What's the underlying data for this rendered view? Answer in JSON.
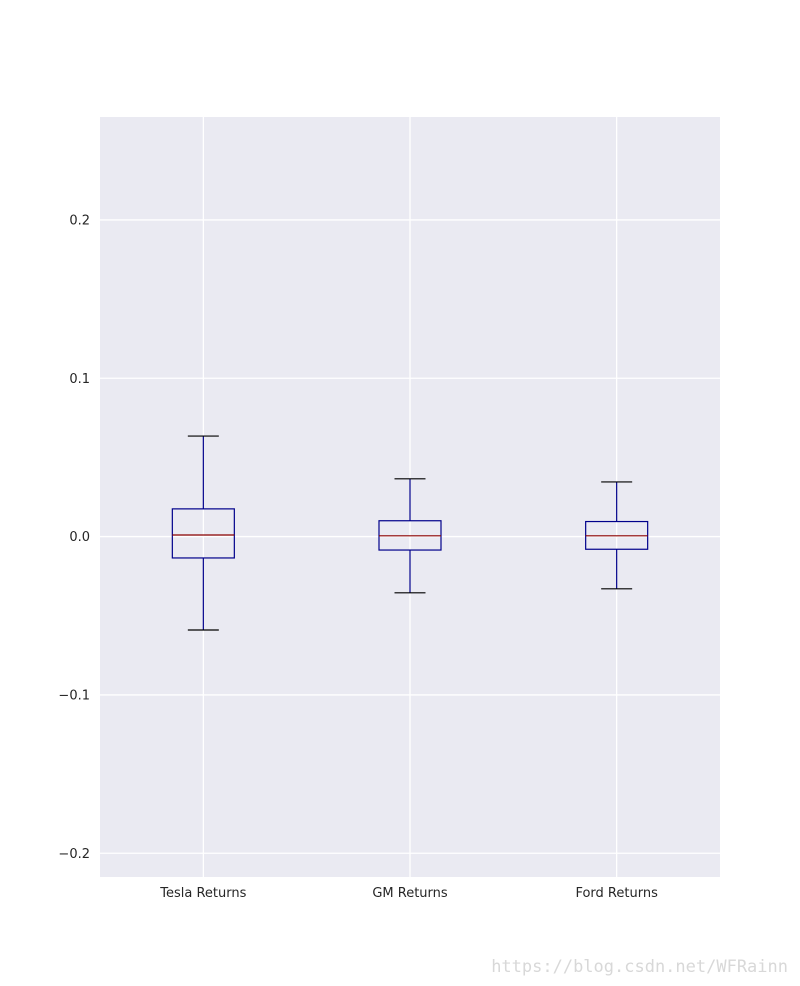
{
  "chart_data": {
    "type": "box",
    "title": "",
    "xlabel": "",
    "ylabel": "",
    "ylim": [
      -0.215,
      0.265
    ],
    "yticks": [
      -0.2,
      -0.1,
      0.0,
      0.1,
      0.2
    ],
    "ytick_labels": [
      "−0.2",
      "−0.1",
      "0.0",
      "0.1",
      "0.2"
    ],
    "grid": true,
    "categories": [
      "Tesla Returns",
      "GM Returns",
      "Ford Returns"
    ],
    "boxes": [
      {
        "name": "Tesla Returns",
        "whisker_low": -0.059,
        "q1": -0.0135,
        "median": 0.001,
        "q3": 0.0175,
        "whisker_high": 0.0635
      },
      {
        "name": "GM Returns",
        "whisker_low": -0.0355,
        "q1": -0.0085,
        "median": 0.0005,
        "q3": 0.01,
        "whisker_high": 0.0365
      },
      {
        "name": "Ford Returns",
        "whisker_low": -0.033,
        "q1": -0.008,
        "median": 0.0005,
        "q3": 0.0095,
        "whisker_high": 0.0345
      }
    ],
    "colors": {
      "plot_background": "#eaeaf2",
      "grid": "#ffffff",
      "box": "#00008b",
      "median": "#8b0000",
      "caps": "#000000"
    }
  },
  "watermark": "https://blog.csdn.net/WFRainn"
}
